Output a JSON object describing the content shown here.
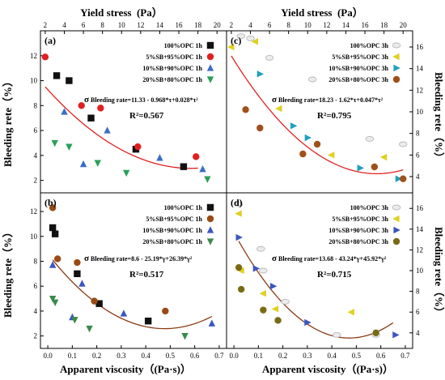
{
  "axes": {
    "top_title": "Yield stress  (Pa）",
    "bottom_title": "Apparent viscosity（(Pa·s)）",
    "left_title": "Bleeding rete（%）",
    "right_title": "Bleeding rete（%）",
    "yield_ticks": [
      "2",
      "4",
      "6",
      "8",
      "10",
      "12",
      "14",
      "16",
      "18",
      "20"
    ],
    "viscosity_ticks": [
      "0.0",
      "0.1",
      "0.2",
      "0.3",
      "0.4",
      "0.5",
      "0.6",
      "0.7"
    ],
    "left_top_ticks": [
      "2",
      "4",
      "6",
      "8",
      "10",
      "12"
    ],
    "left_bottom_ticks": [
      "2",
      "4",
      "6",
      "8",
      "10",
      "12"
    ],
    "right_top_ticks": [
      "4",
      "6",
      "8",
      "10",
      "12",
      "14",
      "16"
    ],
    "right_bottom_ticks": [
      "4",
      "6",
      "8",
      "10",
      "12",
      "14",
      "16"
    ]
  },
  "chart_data": [
    {
      "panel": "(a)",
      "type": "scatter",
      "xlabel": "Yield stress (Pa)",
      "ylabel": "Bleeding rete (%)",
      "xlim": [
        1.5,
        21
      ],
      "ylim": [
        1,
        14
      ],
      "series": [
        {
          "name": "100%OPC 1h",
          "marker": "square",
          "color": "#111111",
          "points": [
            [
              3.2,
              10.4
            ],
            [
              4.5,
              10.0
            ],
            [
              6.8,
              7.0
            ],
            [
              11.5,
              4.5
            ],
            [
              16.5,
              3.1
            ]
          ]
        },
        {
          "name": "5%SB+95%OPC 1h",
          "marker": "circle",
          "color": "#e02020",
          "points": [
            [
              2.0,
              11.9
            ],
            [
              5.8,
              8.0
            ],
            [
              7.8,
              7.8
            ],
            [
              11.7,
              4.7
            ],
            [
              17.8,
              3.9
            ]
          ]
        },
        {
          "name": "10%SB+90%OPC 1h",
          "marker": "triangle-up",
          "color": "#3a6cc8",
          "points": [
            [
              4.0,
              7.5
            ],
            [
              6.0,
              3.3
            ],
            [
              8.5,
              6.0
            ],
            [
              14.0,
              3.8
            ],
            [
              18.5,
              2.9
            ]
          ]
        },
        {
          "name": "20%SB+80%OPC 1h",
          "marker": "triangle-down",
          "color": "#2aa05a",
          "points": [
            [
              3.0,
              5.0
            ],
            [
              4.5,
              4.7
            ],
            [
              7.5,
              3.4
            ],
            [
              10.5,
              2.6
            ],
            [
              19.0,
              2.1
            ]
          ]
        }
      ],
      "fit_equation": "Bleeding rate=11.33 - 0.968*τ+0.028*τ²",
      "fit_coefficients": [
        11.33,
        -0.968,
        0.028
      ],
      "fit_range": [
        2,
        18
      ],
      "fit_color": "#e02020",
      "r_squared": "R²=0.567"
    },
    {
      "panel": "(c)",
      "type": "scatter",
      "xlabel": "Yield stress (Pa)",
      "ylabel": "Bleeding rete (%)",
      "xlim": [
        1.5,
        21
      ],
      "ylim": [
        2.5,
        17.5
      ],
      "series": [
        {
          "name": "100%OPC 3h",
          "marker": "ellipse",
          "color": "#b8b8b8",
          "points": [
            [
              3.0,
              17.0
            ],
            [
              4.0,
              16.8
            ],
            [
              6.0,
              15.0
            ],
            [
              10.5,
              13.0
            ],
            [
              16.5,
              7.5
            ],
            [
              20.0,
              7.0
            ]
          ]
        },
        {
          "name": "5%SB+95%OPC 3h",
          "marker": "triangle-left",
          "color": "#e0d020",
          "points": [
            [
              2.0,
              16.0
            ],
            [
              4.5,
              16.5
            ],
            [
              7.0,
              10.3
            ],
            [
              12.5,
              6.0
            ],
            [
              18.0,
              5.8
            ]
          ]
        },
        {
          "name": "10%SB+90%OPC 3h",
          "marker": "triangle-right",
          "color": "#20a0c0",
          "points": [
            [
              5.0,
              13.5
            ],
            [
              8.5,
              8.7
            ],
            [
              10.0,
              7.6
            ],
            [
              15.5,
              4.8
            ],
            [
              19.5,
              3.8
            ]
          ]
        },
        {
          "name": "20%SB+80%OPC 3h",
          "marker": "circle",
          "color": "#a0501a",
          "points": [
            [
              3.5,
              10.2
            ],
            [
              5.0,
              8.5
            ],
            [
              9.5,
              6.1
            ],
            [
              11.0,
              7.0
            ],
            [
              17.0,
              4.9
            ],
            [
              20.0,
              3.8
            ]
          ]
        }
      ],
      "fit_equation": "Bleeding rate=18.23 - 1.62*τ+0.047*τ²",
      "fit_coefficients": [
        18.23,
        -1.62,
        0.047
      ],
      "fit_range": [
        2,
        20
      ],
      "fit_color": "#e02020",
      "r_squared": "R²=0.795"
    },
    {
      "panel": "(b)",
      "type": "scatter",
      "xlabel": "Apparent viscosity (Pa·s)",
      "ylabel": "Bleeding rete (%)",
      "xlim": [
        -0.03,
        0.73
      ],
      "ylim": [
        1,
        13.5
      ],
      "series": [
        {
          "name": "100%OPC 1h",
          "marker": "square",
          "color": "#111111",
          "points": [
            [
              0.02,
              10.7
            ],
            [
              0.03,
              10.2
            ],
            [
              0.12,
              7.0
            ],
            [
              0.21,
              4.6
            ],
            [
              0.41,
              3.2
            ]
          ]
        },
        {
          "name": "5%SB+95%OPC 1h",
          "marker": "circle",
          "color": "#9a4a14",
          "points": [
            [
              0.02,
              12.3
            ],
            [
              0.04,
              8.2
            ],
            [
              0.12,
              7.9
            ],
            [
              0.19,
              4.8
            ],
            [
              0.48,
              4.0
            ]
          ]
        },
        {
          "name": "10%SB+90%OPC 1h",
          "marker": "triangle-up",
          "color": "#3a56c0",
          "points": [
            [
              0.02,
              7.7
            ],
            [
              0.1,
              3.5
            ],
            [
              0.14,
              6.2
            ],
            [
              0.31,
              3.8
            ],
            [
              0.67,
              3.0
            ]
          ]
        },
        {
          "name": "20%SB+80%OPC 1h",
          "marker": "triangle-down",
          "color": "#3a8a4a",
          "points": [
            [
              0.02,
              5.0
            ],
            [
              0.03,
              4.7
            ],
            [
              0.11,
              3.3
            ],
            [
              0.17,
              2.6
            ],
            [
              0.56,
              2.0
            ]
          ]
        }
      ],
      "fit_equation": "Bleeding rate=8.6 - 25.19*γ+26.39*γ²",
      "fit_coefficients": [
        8.6,
        -25.19,
        26.39
      ],
      "fit_range": [
        0.02,
        0.67
      ],
      "fit_color": "#8a3a14",
      "r_squared": "R²=0.517"
    },
    {
      "panel": "(d)",
      "type": "scatter",
      "xlabel": "Apparent viscosity (Pa·s)",
      "ylabel": "Bleeding rete (%)",
      "xlim": [
        -0.03,
        0.73
      ],
      "ylim": [
        2.5,
        17.5
      ],
      "series": [
        {
          "name": "100%OPC 3h",
          "marker": "ellipse",
          "color": "#b8b8b8",
          "points": [
            [
              0.02,
              16.4
            ],
            [
              0.11,
              12.1
            ],
            [
              0.12,
              10.0
            ],
            [
              0.21,
              7.0
            ],
            [
              0.42,
              3.8
            ],
            [
              0.58,
              3.8
            ]
          ]
        },
        {
          "name": "5%SB+95%OPC 3h",
          "marker": "triangle-left",
          "color": "#e0d020",
          "points": [
            [
              0.02,
              15.5
            ],
            [
              0.03,
              10.0
            ],
            [
              0.12,
              7.8
            ],
            [
              0.17,
              6.3
            ],
            [
              0.48,
              6.0
            ]
          ]
        },
        {
          "name": "10%SB+90%OPC 3h",
          "marker": "triangle-right",
          "color": "#3a56c0",
          "points": [
            [
              0.02,
              13.2
            ],
            [
              0.09,
              10.2
            ],
            [
              0.16,
              8.5
            ],
            [
              0.3,
              5.0
            ],
            [
              0.66,
              3.8
            ]
          ]
        },
        {
          "name": "20%SB+80%OPC 3h",
          "marker": "circle",
          "color": "#7a6a14",
          "points": [
            [
              0.02,
              10.3
            ],
            [
              0.03,
              8.2
            ],
            [
              0.12,
              6.2
            ],
            [
              0.18,
              5.2
            ],
            [
              0.58,
              4.0
            ]
          ]
        }
      ],
      "fit_equation": "Bleeding rate=13.68 - 43.24*γ+45.92*γ²",
      "fit_coefficients": [
        13.68,
        -43.24,
        45.92
      ],
      "fit_range": [
        0.02,
        0.65
      ],
      "fit_color": "#8a3a14",
      "r_squared": "R²=0.715"
    }
  ]
}
